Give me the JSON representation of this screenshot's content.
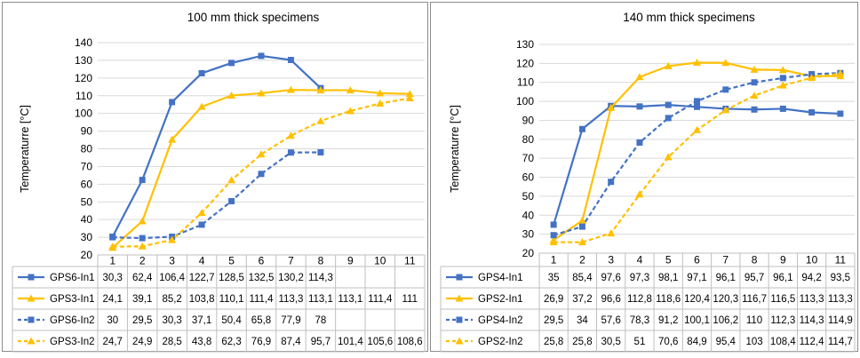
{
  "colors": {
    "blue": "#4472C4",
    "orange": "#FFC000",
    "grid": "#D9D9D9",
    "border": "#8C8C8C",
    "table": "#BFBFBF"
  },
  "chart_data": [
    {
      "type": "line",
      "title": "100 mm thick specimens",
      "ylabel": "Temperaturre [°C]",
      "ylim": [
        20,
        140
      ],
      "ytick_step": 10,
      "yticks": [
        "20",
        "30",
        "40",
        "50",
        "60",
        "70",
        "80",
        "90",
        "100",
        "110",
        "120",
        "130",
        "140"
      ],
      "categories": [
        "1",
        "2",
        "3",
        "4",
        "5",
        "6",
        "7",
        "8",
        "9",
        "10",
        "11"
      ],
      "series": [
        {
          "name": "GPS6-In1",
          "color": "blue",
          "dashed": false,
          "marker": "square",
          "values": [
            30.3,
            62.4,
            106.4,
            122.7,
            128.5,
            132.5,
            130.2,
            114.3,
            null,
            null,
            null
          ],
          "labels": [
            "30,3",
            "62,4",
            "106,4",
            "122,7",
            "128,5",
            "132,5",
            "130,2",
            "114,3",
            "",
            "",
            ""
          ]
        },
        {
          "name": "GPS3-In1",
          "color": "orange",
          "dashed": false,
          "marker": "triangle",
          "values": [
            24.1,
            39.1,
            85.2,
            103.8,
            110.1,
            111.4,
            113.3,
            113.1,
            113.1,
            111.4,
            111
          ],
          "labels": [
            "24,1",
            "39,1",
            "85,2",
            "103,8",
            "110,1",
            "111,4",
            "113,3",
            "113,1",
            "113,1",
            "111,4",
            "111"
          ]
        },
        {
          "name": "GPS6-In2",
          "color": "blue",
          "dashed": true,
          "marker": "square",
          "values": [
            30,
            29.5,
            30.3,
            37.1,
            50.4,
            65.8,
            77.9,
            78,
            null,
            null,
            null
          ],
          "labels": [
            "30",
            "29,5",
            "30,3",
            "37,1",
            "50,4",
            "65,8",
            "77,9",
            "78",
            "",
            "",
            ""
          ]
        },
        {
          "name": "GPS3-In2",
          "color": "orange",
          "dashed": true,
          "marker": "triangle",
          "values": [
            24.7,
            24.9,
            28.5,
            43.8,
            62.3,
            76.9,
            87.4,
            95.7,
            101.4,
            105.6,
            108.6
          ],
          "labels": [
            "24,7",
            "24,9",
            "28,5",
            "43,8",
            "62,3",
            "76,9",
            "87,4",
            "95,7",
            "101,4",
            "105,6",
            "108,6"
          ]
        }
      ]
    },
    {
      "type": "line",
      "title": "140 mm thick specimens",
      "ylabel": "Temperaturre [°C]",
      "ylim": [
        20,
        130
      ],
      "ytick_step": 10,
      "yticks": [
        "20",
        "30",
        "40",
        "50",
        "60",
        "70",
        "80",
        "90",
        "100",
        "110",
        "120",
        "130"
      ],
      "categories": [
        "1",
        "2",
        "3",
        "4",
        "5",
        "6",
        "7",
        "8",
        "9",
        "10",
        "11"
      ],
      "series": [
        {
          "name": "GPS4-In1",
          "color": "blue",
          "dashed": false,
          "marker": "square",
          "values": [
            35,
            85.4,
            97.6,
            97.3,
            98.1,
            97.1,
            96.1,
            95.7,
            96.1,
            94.2,
            93.5
          ],
          "labels": [
            "35",
            "85,4",
            "97,6",
            "97,3",
            "98,1",
            "97,1",
            "96,1",
            "95,7",
            "96,1",
            "94,2",
            "93,5"
          ]
        },
        {
          "name": "GPS2-In1",
          "color": "orange",
          "dashed": false,
          "marker": "triangle",
          "values": [
            26.9,
            37.2,
            96.6,
            112.8,
            118.6,
            120.4,
            120.3,
            116.7,
            116.5,
            113.3,
            113.3
          ],
          "labels": [
            "26,9",
            "37,2",
            "96,6",
            "112,8",
            "118,6",
            "120,4",
            "120,3",
            "116,7",
            "116,5",
            "113,3",
            "113,3"
          ]
        },
        {
          "name": "GPS4-In2",
          "color": "blue",
          "dashed": true,
          "marker": "square",
          "values": [
            29.5,
            34,
            57.6,
            78.3,
            91.2,
            100.1,
            106.2,
            110,
            112.3,
            114.3,
            114.9
          ],
          "labels": [
            "29,5",
            "34",
            "57,6",
            "78,3",
            "91,2",
            "100,1",
            "106,2",
            "110",
            "112,3",
            "114,3",
            "114,9"
          ]
        },
        {
          "name": "GPS2-In2",
          "color": "orange",
          "dashed": true,
          "marker": "triangle",
          "values": [
            25.8,
            25.8,
            30.5,
            51,
            70.6,
            84.9,
            95.4,
            103,
            108.4,
            112.4,
            114.7
          ],
          "labels": [
            "25,8",
            "25,8",
            "30,5",
            "51",
            "70,6",
            "84,9",
            "95,4",
            "103",
            "108,4",
            "112,4",
            "114,7"
          ]
        }
      ]
    }
  ]
}
